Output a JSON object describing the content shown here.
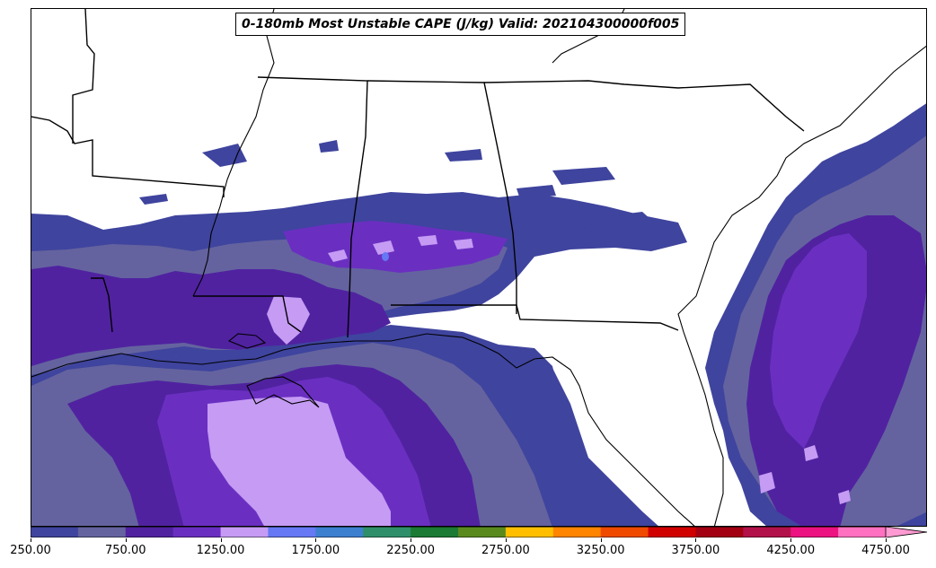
{
  "title": "0-180mb Most Unstable CAPE (J/kg) Valid: 202104300000f005",
  "colorbar": {
    "min": 250,
    "max": 4750,
    "step": 250,
    "bin_colors": [
      "#3f449e",
      "#64639f",
      "#5022a0",
      "#6a2fc1",
      "#c59bf4",
      "#6678f4",
      "#3d80d0",
      "#2f8f6a",
      "#1b7a34",
      "#5a8a1e",
      "#ffbf00",
      "#ff8400",
      "#ef4a00",
      "#d10000",
      "#a30012",
      "#b3114a",
      "#ec1281",
      "#ff70c0"
    ],
    "extend_color": "#ff9ad2",
    "tick_labels": [
      "250.00",
      "750.00",
      "1250.00",
      "1750.00",
      "2250.00",
      "2750.00",
      "3250.00",
      "3750.00",
      "4250.00",
      "4750.00"
    ]
  },
  "map": {
    "region": "Southeastern United States and northern Gulf of Mexico",
    "background": "#ffffff",
    "outline_color": "#000000",
    "cape_shading_levels": [
      {
        "label": "250-500",
        "color": "#3f449e"
      },
      {
        "label": "500-750",
        "color": "#64639f"
      },
      {
        "label": "750-1000",
        "color": "#5022a0"
      },
      {
        "label": "1000-1250",
        "color": "#6a2fc1"
      },
      {
        "label": "1250-1500",
        "color": "#c59bf4"
      },
      {
        "label": "1500-1750",
        "color": "#6678f4"
      }
    ]
  }
}
